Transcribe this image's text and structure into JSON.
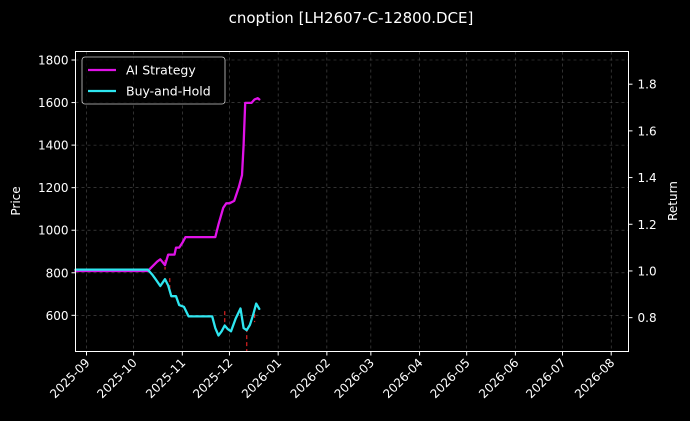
{
  "chart_data": {
    "type": "line",
    "title": "cnoption [LH2607-C-12800.DCE]",
    "xlabel": "",
    "ylabel": "Price",
    "ylabel_right": "Return",
    "x_ticks": [
      "2025-09",
      "2025-10",
      "2025-11",
      "2025-12",
      "2026-01",
      "2026-02",
      "2026-03",
      "2026-04",
      "2026-05",
      "2026-06",
      "2026-07",
      "2026-08"
    ],
    "xlim": [
      "2025-08-25",
      "2026-08-12"
    ],
    "ylim": [
      430,
      1840
    ],
    "y_ticks": [
      600,
      800,
      1000,
      1200,
      1400,
      1600,
      1800
    ],
    "ylim_right": [
      0.655,
      1.94
    ],
    "y_ticks_right": [
      0.8,
      1.0,
      1.2,
      1.4,
      1.6,
      1.8
    ],
    "grid": true,
    "legend_position": "top-left",
    "background": "#000000",
    "series": [
      {
        "name": "AI Strategy",
        "color": "#e012e8",
        "axis": "right",
        "points": [
          [
            "2025-08-25",
            1.0
          ],
          [
            "2025-10-10",
            1.0
          ],
          [
            "2025-10-13",
            1.02
          ],
          [
            "2025-10-16",
            1.04
          ],
          [
            "2025-10-18",
            1.05
          ],
          [
            "2025-10-21",
            1.025
          ],
          [
            "2025-10-23",
            1.07
          ],
          [
            "2025-10-25",
            1.07
          ],
          [
            "2025-10-27",
            1.07
          ],
          [
            "2025-10-28",
            1.1
          ],
          [
            "2025-10-30",
            1.1
          ],
          [
            "2025-11-01",
            1.12
          ],
          [
            "2025-11-03",
            1.145
          ],
          [
            "2025-11-06",
            1.145
          ],
          [
            "2025-11-12",
            1.145
          ],
          [
            "2025-11-18",
            1.145
          ],
          [
            "2025-11-22",
            1.145
          ],
          [
            "2025-11-24",
            1.2
          ],
          [
            "2025-11-27",
            1.27
          ],
          [
            "2025-11-29",
            1.29
          ],
          [
            "2025-12-01",
            1.29
          ],
          [
            "2025-12-04",
            1.3
          ],
          [
            "2025-12-07",
            1.36
          ],
          [
            "2025-12-09",
            1.41
          ],
          [
            "2025-12-10",
            1.54
          ],
          [
            "2025-12-11",
            1.72
          ],
          [
            "2025-12-13",
            1.72
          ],
          [
            "2025-12-15",
            1.72
          ],
          [
            "2025-12-17",
            1.735
          ],
          [
            "2025-12-19",
            1.74
          ],
          [
            "2025-12-20",
            1.735
          ]
        ]
      },
      {
        "name": "Buy-and-Hold",
        "color": "#2ee6f0",
        "axis": "left",
        "points": [
          [
            "2025-08-25",
            815
          ],
          [
            "2025-10-10",
            815
          ],
          [
            "2025-10-13",
            790
          ],
          [
            "2025-10-15",
            770
          ],
          [
            "2025-10-18",
            738
          ],
          [
            "2025-10-21",
            770
          ],
          [
            "2025-10-23",
            740
          ],
          [
            "2025-10-25",
            690
          ],
          [
            "2025-10-28",
            690
          ],
          [
            "2025-10-30",
            648
          ],
          [
            "2025-11-02",
            640
          ],
          [
            "2025-11-05",
            595
          ],
          [
            "2025-11-08",
            595
          ],
          [
            "2025-11-12",
            595
          ],
          [
            "2025-11-17",
            595
          ],
          [
            "2025-11-20",
            595
          ],
          [
            "2025-11-22",
            540
          ],
          [
            "2025-11-24",
            505
          ],
          [
            "2025-11-26",
            525
          ],
          [
            "2025-11-28",
            552
          ],
          [
            "2025-11-30",
            535
          ],
          [
            "2025-12-02",
            525
          ],
          [
            "2025-12-05",
            585
          ],
          [
            "2025-12-08",
            632
          ],
          [
            "2025-12-10",
            540
          ],
          [
            "2025-12-12",
            530
          ],
          [
            "2025-12-14",
            555
          ],
          [
            "2025-12-16",
            600
          ],
          [
            "2025-12-18",
            655
          ],
          [
            "2025-12-20",
            630
          ]
        ]
      }
    ],
    "markers": {
      "color": "#dd2222",
      "style": "dashed-vertical",
      "items": [
        {
          "date": "2025-10-21",
          "y_top": 860,
          "y_bottom": 815
        },
        {
          "date": "2025-10-24",
          "y_top": 775,
          "y_bottom": 728
        },
        {
          "date": "2025-11-28",
          "y_top": 620,
          "y_bottom": 555
        },
        {
          "date": "2025-12-12",
          "y_top": 540,
          "y_bottom": 430
        },
        {
          "date": "2025-12-17",
          "y_top": 640,
          "y_bottom": 568
        }
      ]
    }
  }
}
